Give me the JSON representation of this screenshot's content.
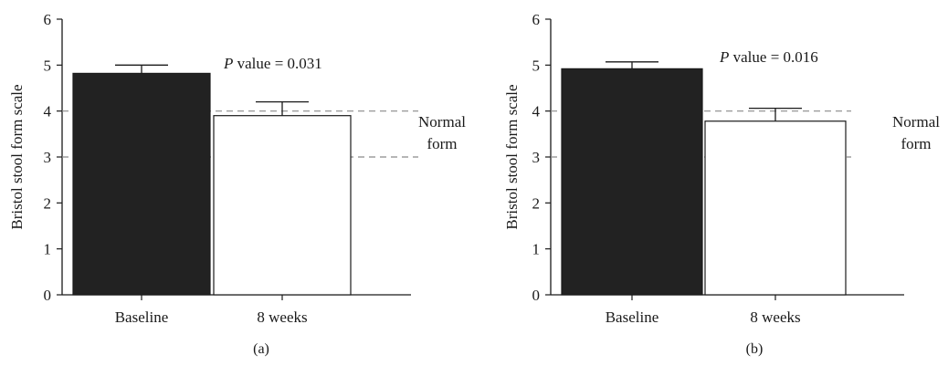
{
  "chart_data": [
    {
      "type": "bar",
      "panel_label": "(a)",
      "categories": [
        "Baseline",
        "8 weeks"
      ],
      "values": [
        4.82,
        3.9
      ],
      "errors": [
        0.18,
        0.3
      ],
      "bar_fills": [
        "#222222",
        "#ffffff"
      ],
      "ylabel": "Bristol stool form scale",
      "ylim": [
        0,
        6
      ],
      "yticks": [
        "0",
        "1",
        "2",
        "3",
        "4",
        "5",
        "6"
      ],
      "grid": false,
      "annotation": {
        "italic": "P",
        "text": " value = 0.031"
      },
      "reference_lines": [
        4,
        3
      ],
      "reference_label": [
        "Normal",
        "form"
      ]
    },
    {
      "type": "bar",
      "panel_label": "(b)",
      "categories": [
        "Baseline",
        "8 weeks"
      ],
      "values": [
        4.92,
        3.78
      ],
      "errors": [
        0.15,
        0.28
      ],
      "bar_fills": [
        "#222222",
        "#ffffff"
      ],
      "ylabel": "Bristol stool form scale",
      "ylim": [
        0,
        6
      ],
      "yticks": [
        "0",
        "1",
        "2",
        "3",
        "4",
        "5",
        "6"
      ],
      "grid": false,
      "annotation": {
        "italic": "P",
        "text": " value = 0.016"
      },
      "reference_lines": [
        4,
        3
      ],
      "reference_label": [
        "Normal",
        "form"
      ]
    }
  ]
}
